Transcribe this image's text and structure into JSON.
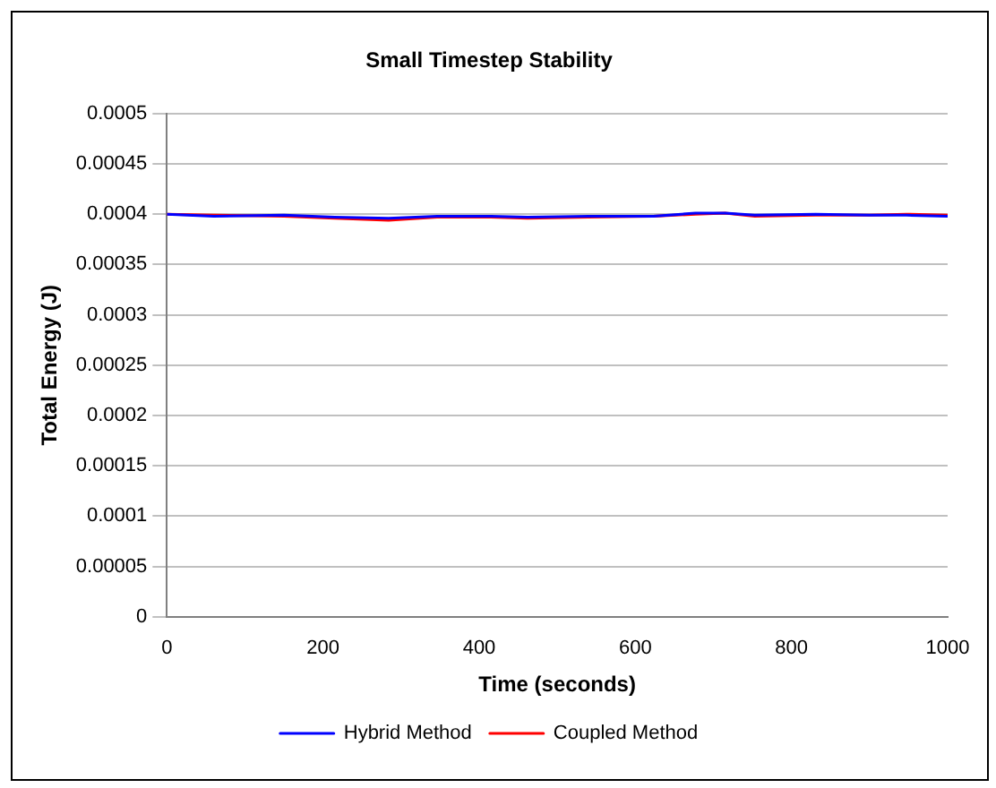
{
  "chart_data": {
    "type": "line",
    "title": "Small Timestep Stability",
    "xlabel": "Time (seconds)",
    "ylabel": "Total Energy (J)",
    "x": [
      0,
      60,
      150,
      215,
      284,
      346,
      415,
      462,
      540,
      623,
      677,
      715,
      753,
      831,
      900,
      947,
      1000
    ],
    "series": [
      {
        "name": "Hybrid Method",
        "color": "#0000ff",
        "values": [
          0.0004,
          0.000398,
          0.000399,
          0.000397,
          0.000396,
          0.000398,
          0.000398,
          0.000397,
          0.000398,
          0.000398,
          0.000401,
          0.000401,
          0.000399,
          0.0004,
          0.000399,
          0.000399,
          0.000398
        ]
      },
      {
        "name": "Coupled Method",
        "color": "#ff0000",
        "values": [
          0.0004,
          0.000399,
          0.000398,
          0.000396,
          0.000394,
          0.000397,
          0.000397,
          0.000396,
          0.000397,
          0.000398,
          0.0004,
          0.000401,
          0.000398,
          0.000399,
          0.000399,
          0.0004,
          0.000399
        ]
      }
    ],
    "xlim": [
      0,
      1000
    ],
    "xticks": [
      0,
      200,
      400,
      600,
      800,
      1000
    ],
    "ylim": [
      0,
      0.0005
    ],
    "yticks": [
      0,
      {
        "value": 5e-05,
        "label": "0.00005"
      },
      0.0001,
      0.00015,
      0.0002,
      0.00025,
      0.0003,
      0.00035,
      0.0004,
      0.00045,
      0.0005
    ],
    "grid": "y",
    "legend": "bottom",
    "marker": "none",
    "line_style": "solid"
  }
}
